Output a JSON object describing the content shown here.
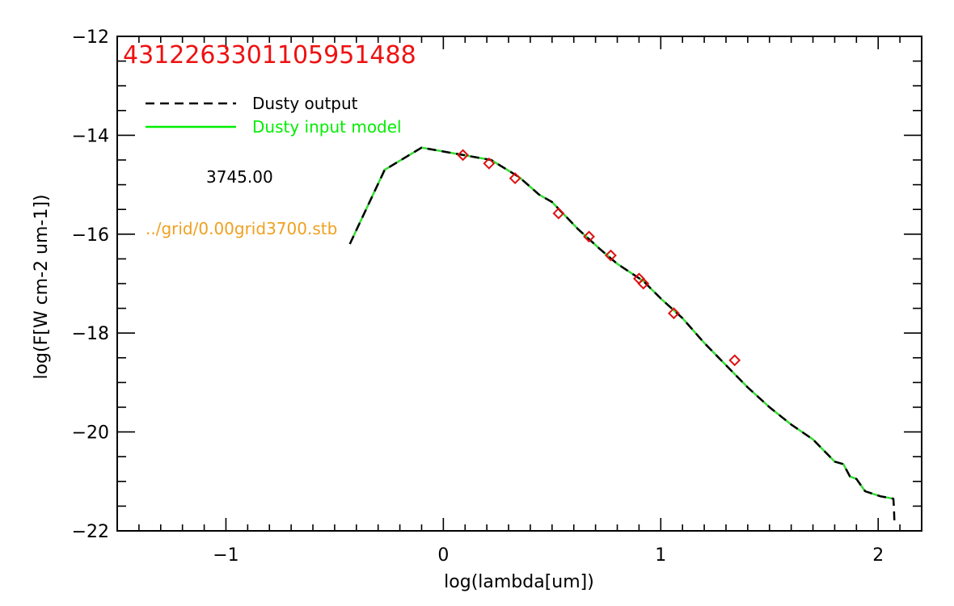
{
  "chart_data": {
    "type": "line",
    "title": "4312263301105951488",
    "xlabel": "log(lambda[um])",
    "ylabel": "log(F[W cm-2 um-1])",
    "xlim": [
      -1.5,
      2.2
    ],
    "ylim": [
      -22,
      -12
    ],
    "x_ticks": [
      -1,
      0,
      1,
      2
    ],
    "x_tick_labels": [
      "−1",
      "0",
      "1",
      "2"
    ],
    "y_ticks": [
      -22,
      -20,
      -18,
      -16,
      -14,
      -12
    ],
    "y_tick_labels": [
      "−22",
      "−20",
      "−18",
      "−16",
      "−14",
      "−12"
    ],
    "grid": false,
    "legend_placement": "top-left",
    "legend": [
      {
        "label": "Dusty output",
        "style": "dashed",
        "color": "#000000"
      },
      {
        "label": "Dusty input model",
        "style": "solid",
        "color": "#00ee00"
      }
    ],
    "annotations": [
      {
        "text": "3745.00",
        "color": "#000000"
      },
      {
        "text": "../grid/0.00grid3700.stb",
        "color": "#f0a020"
      }
    ],
    "colors": {
      "title": "#ee1111",
      "output": "#000000",
      "input": "#33dd33",
      "points": "#dd1111",
      "path": "#f0a020"
    },
    "series": [
      {
        "name": "Dusty output",
        "style": "dashed",
        "x": [
          -0.43,
          -0.27,
          -0.1,
          0.22,
          0.35,
          0.44,
          0.5,
          0.62,
          0.67,
          0.72,
          0.8,
          0.92,
          1.0,
          1.1,
          1.2,
          1.3,
          1.4,
          1.5,
          1.6,
          1.7,
          1.8,
          1.84,
          1.87,
          1.9,
          1.94,
          2.01,
          2.07,
          2.072,
          2.075
        ],
        "y": [
          -16.2,
          -14.7,
          -14.25,
          -14.5,
          -14.85,
          -15.2,
          -15.35,
          -15.9,
          -16.1,
          -16.3,
          -16.6,
          -16.95,
          -17.3,
          -17.7,
          -18.2,
          -18.65,
          -19.1,
          -19.5,
          -19.85,
          -20.15,
          -20.6,
          -20.65,
          -20.9,
          -20.95,
          -21.2,
          -21.3,
          -21.35,
          -21.5,
          -21.85
        ]
      },
      {
        "name": "Dusty input model",
        "style": "solid",
        "x": [
          -0.43,
          -0.27,
          -0.1,
          0.22,
          0.35,
          0.44,
          0.5,
          0.62,
          0.67,
          0.72,
          0.8,
          0.92,
          1.0,
          1.1,
          1.2,
          1.3,
          1.4,
          1.5,
          1.6,
          1.7,
          1.8,
          1.84,
          1.87,
          1.9,
          1.94,
          2.01,
          2.07
        ],
        "y": [
          -16.2,
          -14.7,
          -14.25,
          -14.5,
          -14.85,
          -15.2,
          -15.35,
          -15.9,
          -16.1,
          -16.3,
          -16.6,
          -16.95,
          -17.3,
          -17.7,
          -18.2,
          -18.65,
          -19.1,
          -19.5,
          -19.85,
          -20.15,
          -20.6,
          -20.65,
          -20.9,
          -20.95,
          -21.2,
          -21.3,
          -21.35
        ]
      }
    ],
    "points": {
      "marker": "diamond",
      "x": [
        0.09,
        0.21,
        0.33,
        0.53,
        0.67,
        0.77,
        0.9,
        0.92,
        1.06,
        1.34
      ],
      "y": [
        -14.4,
        -14.57,
        -14.87,
        -15.58,
        -16.05,
        -16.43,
        -16.9,
        -17.0,
        -17.6,
        -18.55
      ]
    }
  }
}
